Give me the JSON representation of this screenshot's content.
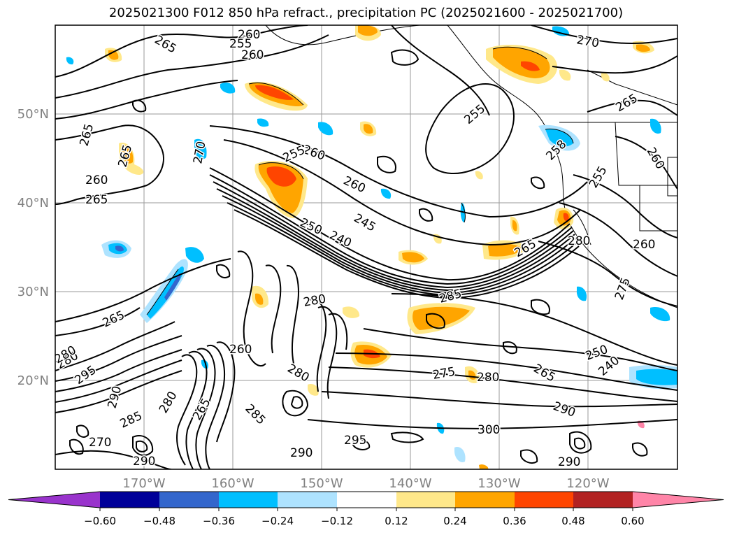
{
  "title": "2025021300 F012 850 hPa refract., precipitation PC (2025021600 - 2025021700)",
  "colors": {
    "frame": "#000000",
    "grid": "#9a9a9a",
    "tick_label": "#808080",
    "contour": "#000000"
  },
  "axes": {
    "lat_labels": [
      "50°N",
      "40°N",
      "30°N",
      "20°N"
    ],
    "lon_labels": [
      "170°W",
      "160°W",
      "150°W",
      "140°W",
      "130°W",
      "120°W"
    ]
  },
  "contour_labels": [
    "265",
    "260",
    "255",
    "260",
    "270",
    "265",
    "265",
    "265",
    "270",
    "260",
    "265",
    "260",
    "255",
    "255",
    "260",
    "245",
    "250",
    "240",
    "258",
    "255",
    "260",
    "265",
    "280",
    "260",
    "275",
    "280",
    "285",
    "265",
    "280",
    "280",
    "275",
    "280",
    "285",
    "265",
    "250",
    "240",
    "280",
    "295",
    "290",
    "300",
    "295",
    "285",
    "290",
    "270",
    "280",
    "290",
    "290",
    "265",
    "260",
    "290"
  ],
  "colorbar": {
    "colors": [
      "#9933cc",
      "#000099",
      "#3366cc",
      "#00bfff",
      "#aee3ff",
      "#ffffff",
      "#ffe88a",
      "#ffa500",
      "#ff4500",
      "#b22222",
      "#ff85a8"
    ],
    "tick_labels": [
      "−0.60",
      "−0.48",
      "−0.36",
      "−0.24",
      "−0.12",
      "0.12",
      "0.24",
      "0.36",
      "0.48",
      "0.60"
    ]
  }
}
